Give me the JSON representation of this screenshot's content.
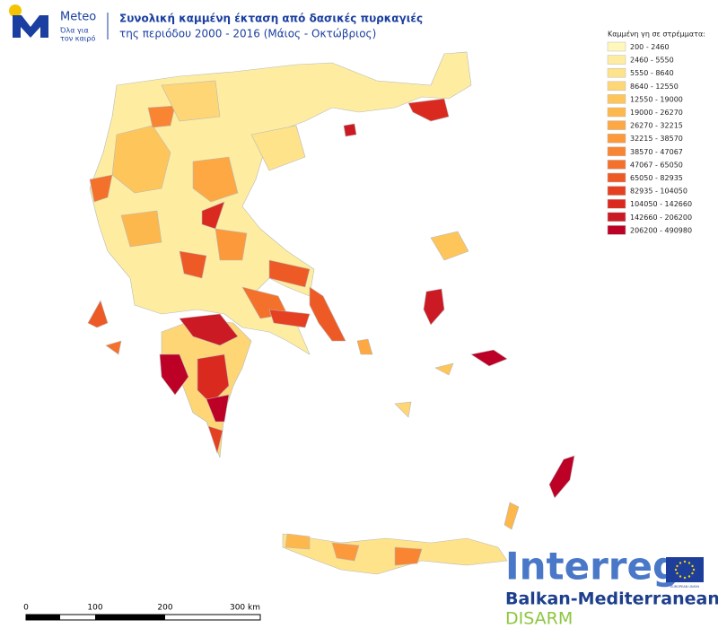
{
  "header": {
    "brand": "Meteo",
    "tagline": [
      "Όλα για",
      "τον καιρό"
    ],
    "title": "Συνολική καμμένη έκταση από δασικές πυρκαγιές",
    "subtitle": "της περιόδου 2000 - 2016 (Μάιος - Οκτώβριος)"
  },
  "legend": {
    "title": "Καμμένη γη σε στρέμματα:",
    "items": [
      {
        "label": "200 - 2460",
        "color": "#fff7bc"
      },
      {
        "label": "2460 - 5550",
        "color": "#feeda0"
      },
      {
        "label": "5550 - 8640",
        "color": "#fee38a"
      },
      {
        "label": "8640 - 12550",
        "color": "#fed675"
      },
      {
        "label": "12550 - 19000",
        "color": "#fec55a"
      },
      {
        "label": "19000 - 26270",
        "color": "#fdb84d"
      },
      {
        "label": "26270 - 32215",
        "color": "#fda842"
      },
      {
        "label": "32215 - 38570",
        "color": "#fc993b"
      },
      {
        "label": "38570 - 47067",
        "color": "#f98533"
      },
      {
        "label": "47067 - 65050",
        "color": "#f4712c"
      },
      {
        "label": "65050 - 82935",
        "color": "#ee5a26"
      },
      {
        "label": "82935 - 104050",
        "color": "#e54022"
      },
      {
        "label": "104050 - 142660",
        "color": "#da2a20"
      },
      {
        "label": "142660 - 206200",
        "color": "#cc1a24"
      },
      {
        "label": "206200 - 490980",
        "color": "#bd0026"
      }
    ]
  },
  "scale": {
    "labels": [
      "0",
      "100",
      "200",
      "300 km"
    ]
  },
  "footer": {
    "program": "Interreg",
    "union": "EUROPEAN UNION",
    "region": "Balkan-Mediterranean",
    "project": "DISARM"
  }
}
